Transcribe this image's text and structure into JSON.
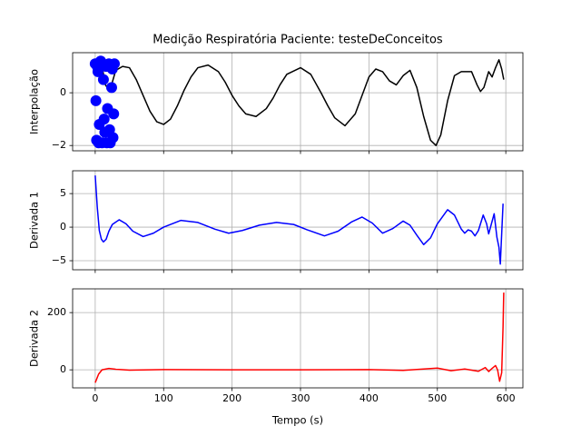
{
  "chart_data": [
    {
      "type": "line",
      "title": "Medição Respiratória Paciente: testeDeConceitos",
      "ylabel": "Interpolação",
      "xlim": [
        -33,
        625
      ],
      "xticks": [
        0,
        100,
        200,
        300,
        400,
        500,
        600
      ],
      "show_xticklabels": false,
      "ylim": [
        -2.2,
        1.52
      ],
      "yticks": [
        {
          "value": -2,
          "label": "−2"
        },
        0
      ],
      "grid": true,
      "series": [
        {
          "type": "line",
          "color": "#000000",
          "x": [
            0,
            5,
            10,
            15,
            20,
            25,
            30,
            40,
            50,
            60,
            70,
            80,
            90,
            100,
            110,
            120,
            130,
            140,
            150,
            165,
            180,
            190,
            200,
            210,
            220,
            235,
            250,
            260,
            270,
            280,
            300,
            315,
            330,
            340,
            350,
            365,
            380,
            390,
            400,
            410,
            420,
            430,
            440,
            450,
            460,
            470,
            480,
            490,
            498,
            505,
            515,
            525,
            535,
            550,
            558,
            563,
            568,
            575,
            580,
            585,
            590,
            594,
            597
          ],
          "values": [
            0.9,
            1.35,
            1.0,
            0.3,
            0.1,
            0.4,
            0.85,
            1.0,
            0.95,
            0.5,
            -0.1,
            -0.7,
            -1.1,
            -1.2,
            -1.0,
            -0.5,
            0.1,
            0.6,
            0.95,
            1.05,
            0.8,
            0.4,
            -0.1,
            -0.5,
            -0.8,
            -0.9,
            -0.6,
            -0.2,
            0.3,
            0.7,
            0.95,
            0.7,
            0.0,
            -0.5,
            -0.95,
            -1.25,
            -0.8,
            -0.1,
            0.6,
            0.9,
            0.8,
            0.45,
            0.3,
            0.65,
            0.85,
            0.2,
            -0.9,
            -1.8,
            -2.0,
            -1.6,
            -0.3,
            0.65,
            0.8,
            0.8,
            0.3,
            0.05,
            0.2,
            0.8,
            0.6,
            0.95,
            1.25,
            0.9,
            0.5
          ]
        },
        {
          "type": "scatter",
          "color": "#0000ff",
          "x": [
            0,
            2,
            4,
            6,
            8,
            10,
            12,
            14,
            16,
            18,
            20,
            22,
            24,
            26,
            28,
            1,
            5,
            9,
            13,
            17,
            21,
            25,
            27,
            3
          ],
          "values": [
            1.1,
            -1.8,
            0.8,
            -1.2,
            1.2,
            -1.9,
            0.5,
            -1.5,
            1.0,
            -0.6,
            1.1,
            -1.9,
            0.2,
            -1.7,
            1.1,
            -0.3,
            -1.9,
            1.1,
            -1.0,
            -1.9,
            -1.4,
            0.9,
            -0.8,
            1.0
          ]
        }
      ]
    },
    {
      "type": "line",
      "ylabel": "Derivada 1",
      "xlim": [
        -33,
        625
      ],
      "xticks": [
        0,
        100,
        200,
        300,
        400,
        500,
        600
      ],
      "show_xticklabels": false,
      "ylim": [
        -6.35,
        8.4
      ],
      "yticks": [
        {
          "value": -5,
          "label": "−5"
        },
        0,
        5
      ],
      "grid": true,
      "series": [
        {
          "type": "line",
          "color": "#0000ff",
          "x": [
            0,
            3,
            6,
            9,
            12,
            16,
            20,
            25,
            35,
            45,
            55,
            70,
            85,
            100,
            125,
            150,
            175,
            195,
            215,
            240,
            265,
            290,
            310,
            335,
            355,
            375,
            390,
            405,
            420,
            435,
            450,
            460,
            470,
            480,
            490,
            500,
            515,
            525,
            535,
            540,
            545,
            550,
            555,
            560,
            567,
            572,
            575,
            579,
            583,
            587,
            590,
            592,
            594,
            596
          ],
          "values": [
            7.7,
            3,
            -0.5,
            -1.8,
            -2.2,
            -1.8,
            -0.6,
            0.4,
            1.1,
            0.5,
            -0.6,
            -1.4,
            -0.9,
            0.0,
            1.0,
            0.7,
            -0.3,
            -0.9,
            -0.5,
            0.3,
            0.7,
            0.4,
            -0.4,
            -1.3,
            -0.6,
            0.8,
            1.5,
            0.6,
            -0.9,
            -0.2,
            0.9,
            0.3,
            -1.2,
            -2.6,
            -1.6,
            0.5,
            2.6,
            1.8,
            -0.3,
            -0.9,
            -0.4,
            -0.6,
            -1.3,
            -0.5,
            1.8,
            0.5,
            -1.0,
            0.5,
            2.0,
            -1.5,
            -3,
            -5.5,
            -1,
            3.5
          ]
        }
      ]
    },
    {
      "type": "line",
      "ylabel": "Derivada 2",
      "xlabel": "Tempo (s)",
      "xlim": [
        -33,
        625
      ],
      "xticks": [
        0,
        100,
        200,
        300,
        400,
        500,
        600
      ],
      "show_xticklabels": true,
      "ylim": [
        -63,
        283
      ],
      "yticks": [
        0,
        200
      ],
      "grid": true,
      "series": [
        {
          "type": "line",
          "color": "#ff0000",
          "x": [
            0,
            5,
            10,
            20,
            30,
            50,
            100,
            200,
            300,
            400,
            450,
            480,
            500,
            520,
            540,
            560,
            570,
            575,
            580,
            585,
            588,
            591,
            594,
            596,
            597
          ],
          "values": [
            -45,
            -15,
            0,
            5,
            2,
            -1,
            1,
            0,
            0,
            1,
            -2,
            3,
            6,
            -3,
            3,
            -5,
            8,
            -6,
            5,
            15,
            0,
            -40,
            -10,
            150,
            270
          ]
        }
      ]
    }
  ]
}
